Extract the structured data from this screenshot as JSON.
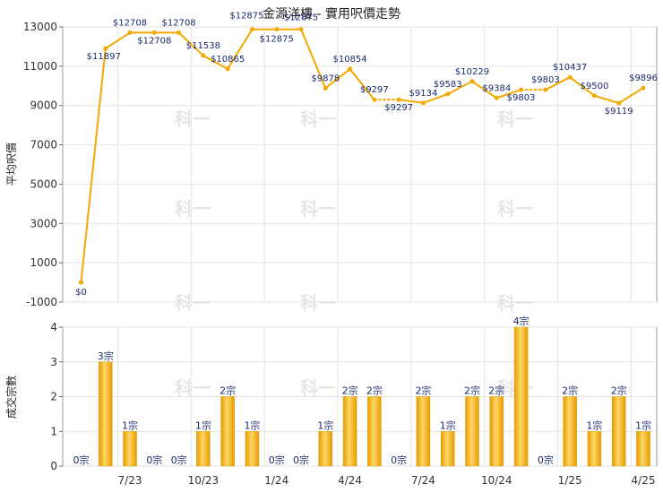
{
  "chart_data": [
    {
      "type": "line",
      "title": "金源洋樓 - 實用呎價走勢",
      "ylabel": "平均呎價",
      "ylim": [
        -1000,
        13000
      ],
      "yticks": [
        -1000,
        1000,
        3000,
        5000,
        7000,
        9000,
        11000,
        13000
      ],
      "grid": true,
      "color": "#f5a800",
      "x_tick_labels": [
        "7/23",
        "10/23",
        "1/24",
        "4/24",
        "7/24",
        "10/24",
        "1/25",
        "4/25"
      ],
      "labels": [
        "$0",
        "$11897",
        "$12708",
        "$12708",
        "$12708",
        "$11538",
        "$10865",
        "$12875",
        "$12875",
        "$12875",
        "$9878",
        "$10854",
        "$9297",
        "$9297",
        "$9134",
        "$9583",
        "$10229",
        "$9384",
        "$9803",
        "$9803",
        "$10437",
        "$9500",
        "$9119",
        "$9896"
      ],
      "values": [
        0,
        11897,
        12708,
        12708,
        12708,
        11538,
        10865,
        12875,
        12875,
        12875,
        9878,
        10854,
        9297,
        9297,
        9134,
        9583,
        10229,
        9384,
        9803,
        9803,
        10437,
        9500,
        9119,
        9896
      ],
      "dotted_segments": [
        12,
        18
      ]
    },
    {
      "type": "bar",
      "ylabel": "成交宗數",
      "ylim": [
        0,
        4
      ],
      "yticks": [
        0,
        1,
        2,
        3,
        4
      ],
      "grid": true,
      "color": "#f5a800",
      "unit": "宗",
      "x_tick_labels": [
        "7/23",
        "10/23",
        "1/24",
        "4/24",
        "7/24",
        "10/24",
        "1/25",
        "4/25"
      ],
      "labels": [
        "0宗",
        "3宗",
        "1宗",
        "0宗",
        "0宗",
        "1宗",
        "2宗",
        "1宗",
        "0宗",
        "0宗",
        "1宗",
        "2宗",
        "2宗",
        "0宗",
        "2宗",
        "1宗",
        "2宗",
        "2宗",
        "4宗",
        "0宗",
        "2宗",
        "1宗",
        "2宗",
        "1宗"
      ],
      "values": [
        0,
        3,
        1,
        0,
        0,
        1,
        2,
        1,
        0,
        0,
        1,
        2,
        2,
        0,
        2,
        1,
        2,
        2,
        4,
        0,
        2,
        1,
        2,
        1
      ]
    }
  ],
  "watermark": "科一"
}
